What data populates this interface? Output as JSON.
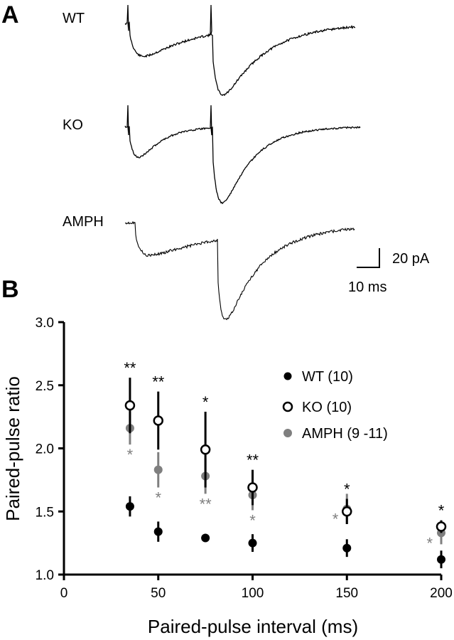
{
  "panels": {
    "a": {
      "letter": "A",
      "traces": [
        {
          "label": "WT"
        },
        {
          "label": "KO"
        },
        {
          "label": "AMPH"
        }
      ],
      "scale_bar": {
        "current": "20 pA",
        "time": "10 ms"
      }
    },
    "b": {
      "letter": "B"
    }
  },
  "chart_data": {
    "type": "scatter",
    "xlabel": "Paired-pulse interval (ms)",
    "ylabel": "Paired-pulse ratio",
    "xlim": [
      0,
      200
    ],
    "ylim": [
      1.0,
      3.0
    ],
    "xticks": [
      "0",
      "50",
      "100",
      "150",
      "200"
    ],
    "yticks": [
      "1.0",
      "1.5",
      "2.0",
      "2.5",
      "3.0"
    ],
    "grid": false,
    "legend_position": "top-right",
    "series": [
      {
        "name": "WT (10)",
        "marker": "filled",
        "color": "#000000",
        "points": [
          {
            "x": 35,
            "y": 1.54,
            "err": 0.08
          },
          {
            "x": 50,
            "y": 1.34,
            "err": 0.08
          },
          {
            "x": 75,
            "y": 1.29,
            "err": 0.03
          },
          {
            "x": 100,
            "y": 1.25,
            "err": 0.07
          },
          {
            "x": 150,
            "y": 1.21,
            "err": 0.07
          },
          {
            "x": 200,
            "y": 1.12,
            "err": 0.07
          }
        ]
      },
      {
        "name": "KO (10)",
        "marker": "open",
        "color": "#000000",
        "points": [
          {
            "x": 35,
            "y": 2.34,
            "err": 0.22,
            "stars": "**"
          },
          {
            "x": 50,
            "y": 2.22,
            "err": 0.23,
            "stars": "**"
          },
          {
            "x": 75,
            "y": 1.99,
            "err": 0.3,
            "stars": "*"
          },
          {
            "x": 100,
            "y": 1.69,
            "err": 0.14,
            "stars": "**"
          },
          {
            "x": 150,
            "y": 1.5,
            "err": 0.1,
            "stars": "*"
          },
          {
            "x": 200,
            "y": 1.38,
            "err": 0.05,
            "stars": "*"
          }
        ]
      },
      {
        "name": "AMPH (9 -11)",
        "marker": "filled",
        "color": "#7f7f7f",
        "points": [
          {
            "x": 35,
            "y": 2.16,
            "err": 0.13,
            "stars": "*"
          },
          {
            "x": 50,
            "y": 1.83,
            "err": 0.14,
            "stars": "*"
          },
          {
            "x": 75,
            "y": 1.78,
            "err": 0.14,
            "stars": "**"
          },
          {
            "x": 100,
            "y": 1.63,
            "err": 0.12,
            "stars": "*"
          },
          {
            "x": 150,
            "y": 1.52,
            "err": 0.12,
            "stars": "*"
          },
          {
            "x": 200,
            "y": 1.33,
            "err": 0.09,
            "stars": "*"
          }
        ]
      }
    ]
  }
}
